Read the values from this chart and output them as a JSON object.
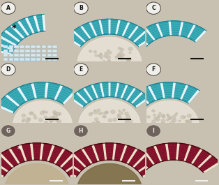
{
  "figsize": [
    3.14,
    2.65
  ],
  "dpi": 100,
  "labels": [
    "A",
    "B",
    "C",
    "D",
    "E",
    "F",
    "G",
    "H",
    "I"
  ],
  "has_asterisk": [
    true,
    false,
    false,
    false,
    false,
    false,
    true,
    false,
    false
  ],
  "outer_bg": "#c8c0b0",
  "panel_bg_blue": "#f0f8f0",
  "panel_bg_dark": "#1a0a0a",
  "teal_main": "#3aacb8",
  "teal_dark": "#1a7a8a",
  "teal_light": "#80d0d8",
  "white_gap": "#f0f8ff",
  "maroon_main": "#8b1530",
  "maroon_dark": "#5a0a18",
  "maroon_light": "#b02040",
  "cream": "#f0e8d0",
  "embryo_color_b": "#e8e0d0",
  "embryo_color_r": "#907850",
  "scale_bar_color_blue": "#111111",
  "scale_bar_color_red": "#eeeeee",
  "label_circ_color_blue": "#111111",
  "label_circ_color_red": "#eeeeee"
}
